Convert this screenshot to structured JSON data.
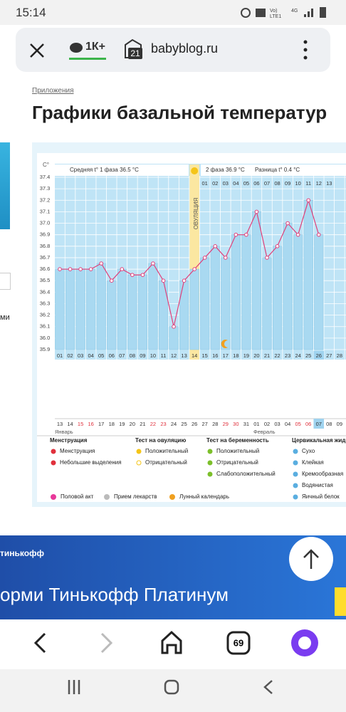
{
  "status_bar": {
    "time": "15:14"
  },
  "browser": {
    "comments": "1К+",
    "tabs_badge": "21",
    "url": "babyblog.ru",
    "tab_count": "69"
  },
  "article": {
    "breadcrumb": "Приложения",
    "title": "Графики базальной температур"
  },
  "left_strip": {
    "text": "ми"
  },
  "chart": {
    "type": "line",
    "axis_unit": "C°",
    "phase1_summary": "Средняя t° 1 фаза 36.5 °C",
    "phase2_summary": "2 фаза 36.9 °C",
    "difference": "Разница t° 0.4 °C",
    "ovulation_label": "ОВУЛЯЦИЯ",
    "ylim": [
      35.9,
      37.4
    ],
    "yticks": [
      37.4,
      37.3,
      37.2,
      37.1,
      {
        "value": 37,
        "label": "37.0"
      },
      36.9,
      36.8,
      36.7,
      36.6,
      36.5,
      36.4,
      36.3,
      36.2,
      36.1,
      {
        "value": 36,
        "label": "36.0"
      },
      35.9
    ],
    "days": [
      "01",
      "02",
      "03",
      "04",
      "05",
      "06",
      "07",
      "08",
      "09",
      "10",
      "11",
      "12",
      "13",
      "14",
      "15",
      "16",
      "17",
      "18",
      "19",
      "20",
      "21",
      "22",
      "23",
      "24",
      "25",
      "26",
      "27",
      "28"
    ],
    "values": [
      36.6,
      36.6,
      36.6,
      36.6,
      36.65,
      36.5,
      36.6,
      36.55,
      36.55,
      36.65,
      36.5,
      36.1,
      36.5,
      36.6,
      36.7,
      36.8,
      36.7,
      36.9,
      36.9,
      37.1,
      36.7,
      36.8,
      37.0,
      36.9,
      37.2,
      36.9,
      null,
      null
    ],
    "phase2_days": [
      "01",
      "02",
      "03",
      "04",
      "05",
      "06",
      "07",
      "08",
      "09",
      "10",
      "11",
      "12",
      "13"
    ],
    "highlight_day_index": 25,
    "dates": [
      "13",
      "14",
      "15",
      "16",
      "17",
      "18",
      "19",
      "20",
      "21",
      "22",
      "23",
      "24",
      "25",
      "26",
      "27",
      "28",
      "29",
      "30",
      "31",
      "01",
      "02",
      "03",
      "04",
      "05",
      "06",
      "07",
      "08",
      "09"
    ],
    "date_weekend": [
      false,
      false,
      true,
      true,
      false,
      false,
      false,
      false,
      false,
      true,
      true,
      false,
      false,
      false,
      false,
      false,
      true,
      true,
      false,
      false,
      false,
      false,
      false,
      true,
      true,
      false,
      false,
      false
    ],
    "highlight_date_index": 25,
    "months": [
      "Январь",
      "Февраль"
    ]
  },
  "legend": {
    "groups": [
      {
        "title": "Менструация",
        "items": [
          "Менструация",
          "Небольшие выделения"
        ]
      },
      {
        "title": "Тест на овуляцию",
        "items": [
          "Положительный",
          "Отрицательный"
        ]
      },
      {
        "title": "Тест на беременность",
        "items": [
          "Положительный",
          "Отрицательный",
          "Слабоположительный"
        ]
      },
      {
        "title": "Цервикальная жид",
        "items": [
          "Сухо",
          "Клейкая",
          "Кремообразная",
          "Водянистая",
          "Яичный белок"
        ]
      }
    ],
    "extra": [
      "Половой акт",
      "Прием лекарств",
      "Лунный календарь"
    ]
  },
  "banner": {
    "brand": "тинькофф",
    "headline": "орми Тинькофф Платинум"
  }
}
